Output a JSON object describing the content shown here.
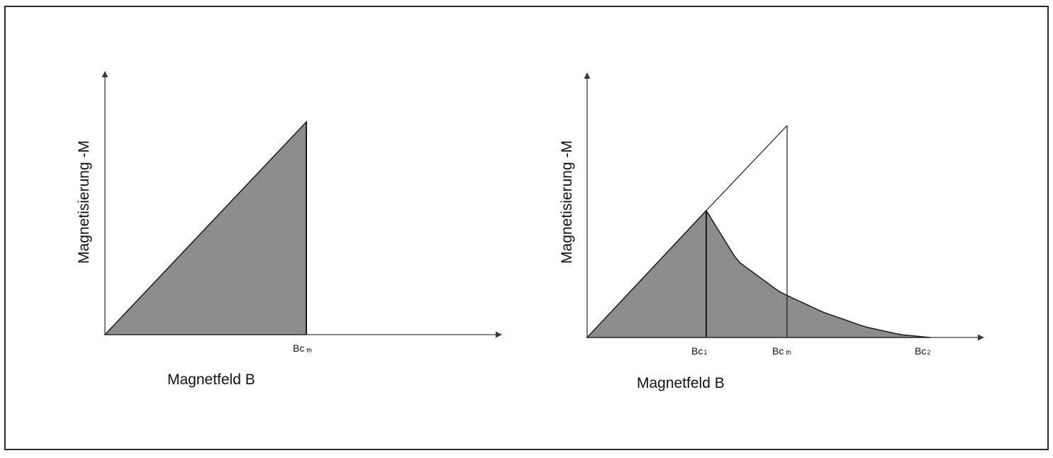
{
  "figure": {
    "colors": {
      "frame": "#2a2a2a",
      "axis": "#3a3a3a",
      "line": "#1a1a1a",
      "fill": "#8c8c8c"
    },
    "left_diagram": {
      "ylabel": "Magnetisierung -M",
      "xlabel": "Magnetfeld B",
      "tick_bcth": {
        "main": "Bc",
        "sub": "th"
      }
    },
    "right_diagram": {
      "ylabel": "Magnetisierung -M",
      "xlabel": "Magnetfeld B",
      "tick_bc1": {
        "main": "Bc",
        "sub": "1"
      },
      "tick_bcth": {
        "main": "Bc",
        "sub": "th"
      },
      "tick_bc2": {
        "main": "Bc",
        "sub": "2"
      }
    }
  }
}
